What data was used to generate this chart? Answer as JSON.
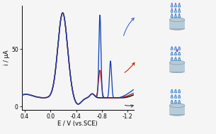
{
  "xlim": [
    0.45,
    -1.3
  ],
  "ylim": [
    -3,
    88
  ],
  "xlabel": "E / V (vs.SCE)",
  "ylabel": "i / μA",
  "yticks": [
    0,
    50
  ],
  "xticks": [
    0.4,
    0.0,
    -0.4,
    -0.8,
    -1.2
  ],
  "xtick_labels": [
    "0.4",
    "0.0",
    "-0.4",
    "-0.8",
    "-1.2"
  ],
  "bg_color": "#f5f5f5",
  "curve_black_color": "#111111",
  "curve_red_color": "#cc1100",
  "curve_blue_color": "#1144bb",
  "arrow_blue_color": "#4466cc",
  "arrow_red_color": "#cc2200",
  "arrow_black_color": "#444444",
  "disk_color": "#b8ccd8",
  "disk_edge_color": "#8899aa",
  "funnel_color": "#4488cc",
  "dot_color": "#9933cc",
  "fig_width": 3.05,
  "fig_height": 1.89,
  "dpi": 100
}
